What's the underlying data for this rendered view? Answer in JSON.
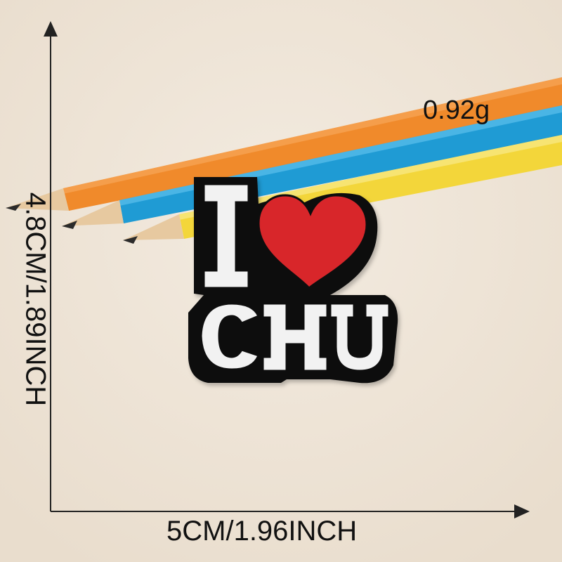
{
  "product": {
    "name_text": "CHU",
    "heart_symbol": "heart"
  },
  "dimensions": {
    "width_text": "5CM/1.96INCH",
    "height_text": "4.8CM/1.89INCH"
  },
  "weight": {
    "text": "0.92g"
  },
  "colors": {
    "background": "#efe4d6",
    "patch": "#111111",
    "heart": "#d8262b",
    "letters": "#f2f2f2",
    "pencil_orange": "#f08a2b",
    "pencil_blue": "#1f9bd4",
    "pencil_yellow": "#f3d63a"
  }
}
